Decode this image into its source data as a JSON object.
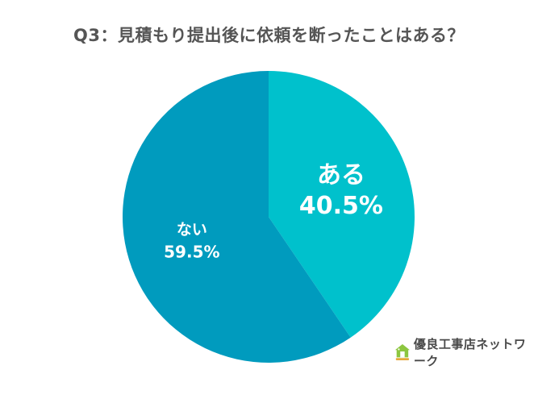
{
  "chart_data": {
    "type": "pie",
    "title": "Q3：見積もり提出後に依頼を断ったことはある？",
    "slices": [
      {
        "label": "ある",
        "value": 40.5,
        "value_label": "40.5%",
        "color": "#00c1cc"
      },
      {
        "label": "ない",
        "value": 59.5,
        "value_label": "59.5%",
        "color": "#009bbe"
      }
    ],
    "start_angle": "12 o'clock",
    "direction": "clockwise"
  },
  "branding": {
    "text": "優良工事店ネットワーク",
    "logo_icon": "house-leaf-logo",
    "logo_color": "#8cc63f"
  }
}
